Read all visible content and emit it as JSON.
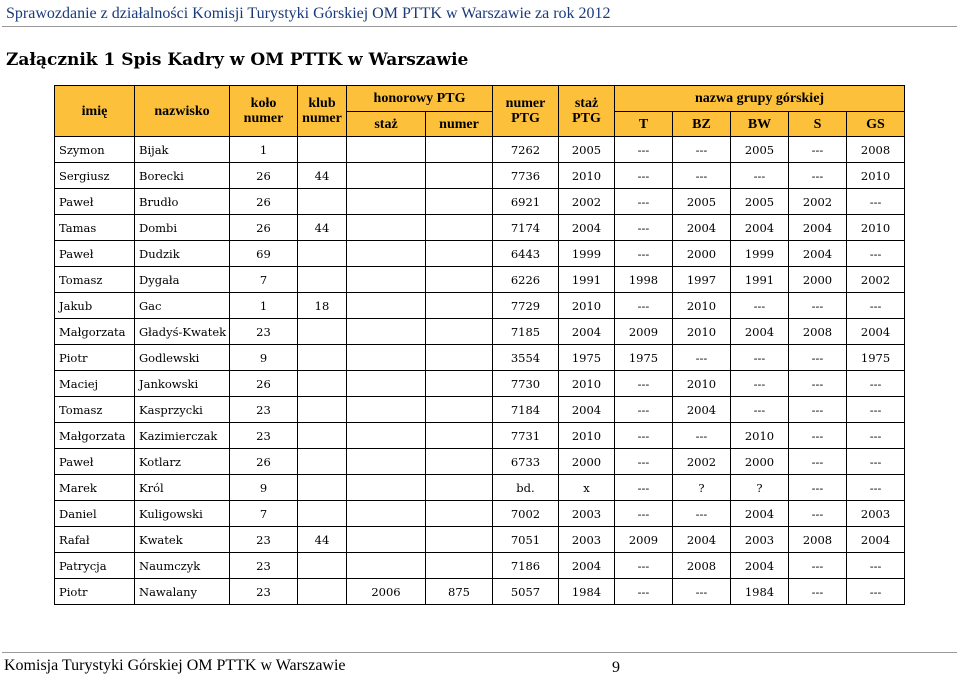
{
  "header": {
    "text": "Sprawozdanie z działalności Komisji Turystyki Górskiej OM PTTK w Warszawie za rok 2012"
  },
  "title": "Załącznik 1 Spis Kadry w OM PTTK w Warszawie",
  "table": {
    "headers": {
      "imie": "imię",
      "nazwisko": "nazwisko",
      "kolo": "koło numer",
      "klub": "klub numer",
      "honorowy": "honorowy PTG",
      "honorowy_staz": "staż",
      "honorowy_numer": "numer",
      "numer_ptg": "numer PTG",
      "staz_ptg": "staż PTG",
      "grupa": "nazwa grupy górskiej",
      "g_T": "T",
      "g_BZ": "BZ",
      "g_BW": "BW",
      "g_S": "S",
      "g_GS": "GS"
    },
    "rows": [
      [
        "Szymon",
        "Bijak",
        "1",
        "",
        "",
        "",
        "7262",
        "2005",
        "---",
        "---",
        "2005",
        "---",
        "2008"
      ],
      [
        "Sergiusz",
        "Borecki",
        "26",
        "44",
        "",
        "",
        "7736",
        "2010",
        "---",
        "---",
        "---",
        "---",
        "2010"
      ],
      [
        "Paweł",
        "Brudło",
        "26",
        "",
        "",
        "",
        "6921",
        "2002",
        "---",
        "2005",
        "2005",
        "2002",
        "---"
      ],
      [
        "Tamas",
        "Dombi",
        "26",
        "44",
        "",
        "",
        "7174",
        "2004",
        "---",
        "2004",
        "2004",
        "2004",
        "2010"
      ],
      [
        "Paweł",
        "Dudzik",
        "69",
        "",
        "",
        "",
        "6443",
        "1999",
        "---",
        "2000",
        "1999",
        "2004",
        "---"
      ],
      [
        "Tomasz",
        "Dygała",
        "7",
        "",
        "",
        "",
        "6226",
        "1991",
        "1998",
        "1997",
        "1991",
        "2000",
        "2002"
      ],
      [
        "Jakub",
        "Gac",
        "1",
        "18",
        "",
        "",
        "7729",
        "2010",
        "---",
        "2010",
        "---",
        "---",
        "---"
      ],
      [
        "Małgorzata",
        "Gładyś-Kwatek",
        "23",
        "",
        "",
        "",
        "7185",
        "2004",
        "2009",
        "2010",
        "2004",
        "2008",
        "2004"
      ],
      [
        "Piotr",
        "Godlewski",
        "9",
        "",
        "",
        "",
        "3554",
        "1975",
        "1975",
        "---",
        "---",
        "---",
        "1975"
      ],
      [
        "Maciej",
        "Jankowski",
        "26",
        "",
        "",
        "",
        "7730",
        "2010",
        "---",
        "2010",
        "---",
        "---",
        "---"
      ],
      [
        "Tomasz",
        "Kasprzycki",
        "23",
        "",
        "",
        "",
        "7184",
        "2004",
        "---",
        "2004",
        "---",
        "---",
        "---"
      ],
      [
        "Małgorzata",
        "Kazimierczak",
        "23",
        "",
        "",
        "",
        "7731",
        "2010",
        "---",
        "---",
        "2010",
        "---",
        "---"
      ],
      [
        "Paweł",
        "Kotlarz",
        "26",
        "",
        "",
        "",
        "6733",
        "2000",
        "---",
        "2002",
        "2000",
        "---",
        "---"
      ],
      [
        "Marek",
        "Król",
        "9",
        "",
        "",
        "",
        "bd.",
        "x",
        "---",
        "?",
        "?",
        "---",
        "---"
      ],
      [
        "Daniel",
        "Kuligowski",
        "7",
        "",
        "",
        "",
        "7002",
        "2003",
        "---",
        "---",
        "2004",
        "---",
        "2003"
      ],
      [
        "Rafał",
        "Kwatek",
        "23",
        "44",
        "",
        "",
        "7051",
        "2003",
        "2009",
        "2004",
        "2003",
        "2008",
        "2004"
      ],
      [
        "Patrycja",
        "Naumczyk",
        "23",
        "",
        "",
        "",
        "7186",
        "2004",
        "---",
        "2008",
        "2004",
        "---",
        "---"
      ],
      [
        "Piotr",
        "Nawalany",
        "23",
        "",
        "2006",
        "875",
        "5057",
        "1984",
        "---",
        "---",
        "1984",
        "---",
        "---"
      ]
    ]
  },
  "footer": {
    "left": "Komisja Turystyki Górskiej OM PTTK w Warszawie",
    "page": "9"
  },
  "colors": {
    "header_fill": "#fcc03a",
    "header_text": "#1a3a7a"
  }
}
